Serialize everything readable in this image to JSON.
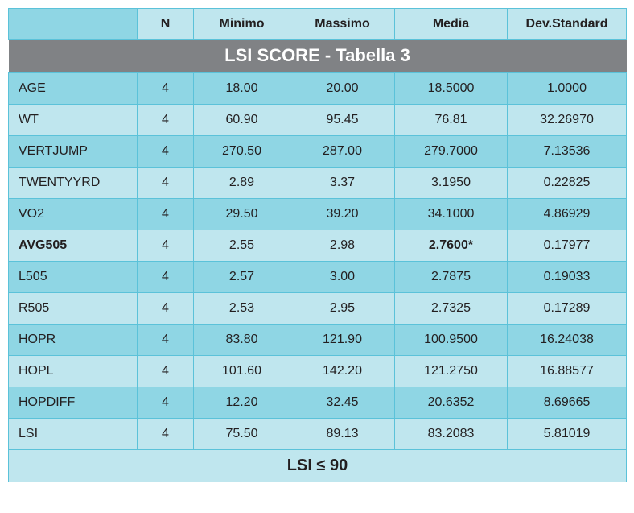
{
  "title": "LSI SCORE - Tabella 3",
  "columns": {
    "rowlabel": "",
    "n": "N",
    "min": "Minimo",
    "max": "Massimo",
    "media": "Media",
    "dev": "Dev.Standard"
  },
  "section_label": "LSI ≤ 90",
  "colors": {
    "title_bg": "#808285",
    "title_fg": "#ffffff",
    "border": "#5bc2d9",
    "shade_light": "#bfe6ee",
    "shade_dark": "#8fd6e4",
    "text": "#231f20"
  },
  "rows": [
    {
      "label": "AGE",
      "n": "4",
      "min": "18.00",
      "max": "20.00",
      "media": "18.5000",
      "dev": "1.0000",
      "shade": "dark",
      "label_bold": false,
      "media_bold": false
    },
    {
      "label": "WT",
      "n": "4",
      "min": "60.90",
      "max": "95.45",
      "media": "76.81",
      "dev": "32.26970",
      "shade": "light",
      "label_bold": false,
      "media_bold": false
    },
    {
      "label": "VERTJUMP",
      "n": "4",
      "min": "270.50",
      "max": "287.00",
      "media": "279.7000",
      "dev": "7.13536",
      "shade": "dark",
      "label_bold": false,
      "media_bold": false
    },
    {
      "label": "TWENTYYRD",
      "n": "4",
      "min": "2.89",
      "max": "3.37",
      "media": "3.1950",
      "dev": "0.22825",
      "shade": "light",
      "label_bold": false,
      "media_bold": false
    },
    {
      "label": "VO2",
      "n": "4",
      "min": "29.50",
      "max": "39.20",
      "media": "34.1000",
      "dev": "4.86929",
      "shade": "dark",
      "label_bold": false,
      "media_bold": false
    },
    {
      "label": "AVG505",
      "n": "4",
      "min": "2.55",
      "max": "2.98",
      "media": "2.7600*",
      "dev": "0.17977",
      "shade": "light",
      "label_bold": true,
      "media_bold": true
    },
    {
      "label": "L505",
      "n": "4",
      "min": "2.57",
      "max": "3.00",
      "media": "2.7875",
      "dev": "0.19033",
      "shade": "dark",
      "label_bold": false,
      "media_bold": false
    },
    {
      "label": "R505",
      "n": "4",
      "min": "2.53",
      "max": "2.95",
      "media": "2.7325",
      "dev": "0.17289",
      "shade": "light",
      "label_bold": false,
      "media_bold": false
    },
    {
      "label": "HOPR",
      "n": "4",
      "min": "83.80",
      "max": "121.90",
      "media": "100.9500",
      "dev": "16.24038",
      "shade": "dark",
      "label_bold": false,
      "media_bold": false
    },
    {
      "label": "HOPL",
      "n": "4",
      "min": "101.60",
      "max": "142.20",
      "media": "121.2750",
      "dev": "16.88577",
      "shade": "light",
      "label_bold": false,
      "media_bold": false
    },
    {
      "label": "HOPDIFF",
      "n": "4",
      "min": "12.20",
      "max": "32.45",
      "media": "20.6352",
      "dev": "8.69665",
      "shade": "dark",
      "label_bold": false,
      "media_bold": false
    },
    {
      "label": "LSI",
      "n": "4",
      "min": "75.50",
      "max": "89.13",
      "media": "83.2083",
      "dev": "5.81019",
      "shade": "light",
      "label_bold": false,
      "media_bold": false
    }
  ]
}
